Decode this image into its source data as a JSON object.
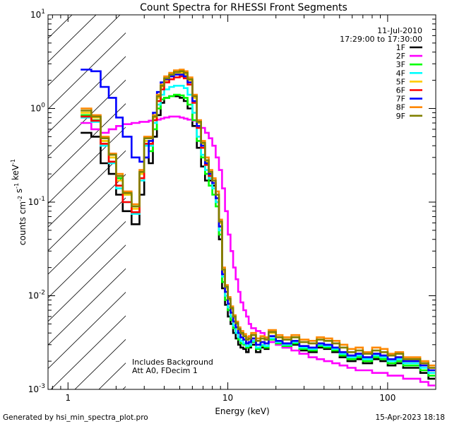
{
  "chart_data": {
    "type": "line",
    "title": "Count Spectra for RHESSI Front Segments",
    "xlabel": "Energy (keV)",
    "ylabel": "counts cm^-2 s^-1 keV^-1",
    "xscale": "log",
    "yscale": "log",
    "xlim": [
      0.75,
      200
    ],
    "ylim": [
      0.001,
      10
    ],
    "x_tick_labels": [
      "1",
      "10",
      "100"
    ],
    "y_tick_labels": [
      "10^-3",
      "10^-2",
      "10^-1",
      "10^0",
      "10^1"
    ],
    "date": "11-Jul-2010",
    "time_range": "17:29:00 to 17:30:00",
    "hatched_region_keV": [
      0.75,
      3.0
    ],
    "annotation_lines": [
      "Includes Background",
      "Att A0, FDecim 1"
    ],
    "energy_keV": [
      1.2,
      1.4,
      1.6,
      1.8,
      2.0,
      2.2,
      2.5,
      2.8,
      3.0,
      3.2,
      3.4,
      3.6,
      3.8,
      4.0,
      4.3,
      4.6,
      5.0,
      5.3,
      5.6,
      6.0,
      6.4,
      6.8,
      7.2,
      7.6,
      8.0,
      8.4,
      8.8,
      9.2,
      9.6,
      10.0,
      10.4,
      10.8,
      11.2,
      11.6,
      12.0,
      12.5,
      13.0,
      13.5,
      14.0,
      15.0,
      16.0,
      17.0,
      18.0,
      20.0,
      22.0,
      25.0,
      28.0,
      32.0,
      36.0,
      40.0,
      45.0,
      50.0,
      56.0,
      63.0,
      70.0,
      80.0,
      90.0,
      100.0,
      112.0,
      125.0,
      140.0,
      160.0,
      180.0
    ],
    "series": [
      {
        "name": "1F",
        "color": "#000000",
        "values": [
          0.55,
          0.5,
          0.26,
          0.2,
          0.12,
          0.08,
          0.058,
          0.12,
          0.3,
          0.26,
          0.5,
          0.85,
          1.15,
          1.3,
          1.35,
          1.35,
          1.3,
          1.2,
          1.0,
          0.65,
          0.38,
          0.24,
          0.17,
          0.17,
          0.15,
          0.1,
          0.04,
          0.012,
          0.008,
          0.006,
          0.005,
          0.004,
          0.0035,
          0.003,
          0.0028,
          0.0027,
          0.0025,
          0.0028,
          0.003,
          0.0025,
          0.0028,
          0.0027,
          0.0035,
          0.003,
          0.0028,
          0.003,
          0.0026,
          0.0025,
          0.0028,
          0.0027,
          0.0025,
          0.0022,
          0.002,
          0.0021,
          0.0019,
          0.0021,
          0.002,
          0.0018,
          0.0019,
          0.0017,
          0.0017,
          0.0015,
          0.0013
        ]
      },
      {
        "name": "2F",
        "color": "#ff00ff",
        "values": [
          0.7,
          0.6,
          0.55,
          0.6,
          0.65,
          0.68,
          0.7,
          0.72,
          0.72,
          0.74,
          0.75,
          0.76,
          0.78,
          0.8,
          0.82,
          0.82,
          0.8,
          0.78,
          0.76,
          0.74,
          0.7,
          0.62,
          0.55,
          0.48,
          0.4,
          0.3,
          0.22,
          0.14,
          0.08,
          0.045,
          0.03,
          0.02,
          0.015,
          0.011,
          0.0085,
          0.007,
          0.006,
          0.005,
          0.0045,
          0.0042,
          0.004,
          0.0035,
          0.0032,
          0.003,
          0.0028,
          0.0026,
          0.0024,
          0.0022,
          0.0021,
          0.002,
          0.0019,
          0.0018,
          0.0017,
          0.0016,
          0.0016,
          0.0015,
          0.0015,
          0.0014,
          0.0014,
          0.0013,
          0.0013,
          0.0012,
          0.0011
        ]
      },
      {
        "name": "3F",
        "color": "#00ff00",
        "values": [
          0.85,
          0.75,
          0.45,
          0.3,
          0.18,
          0.12,
          0.09,
          0.2,
          0.45,
          0.35,
          0.6,
          1.0,
          1.25,
          1.3,
          1.35,
          1.4,
          1.38,
          1.3,
          1.1,
          0.75,
          0.45,
          0.3,
          0.2,
          0.15,
          0.12,
          0.09,
          0.045,
          0.014,
          0.009,
          0.007,
          0.0055,
          0.0045,
          0.004,
          0.0034,
          0.0031,
          0.003,
          0.0028,
          0.0029,
          0.0032,
          0.0027,
          0.0029,
          0.0028,
          0.0034,
          0.0031,
          0.0029,
          0.0031,
          0.0027,
          0.0026,
          0.0029,
          0.0028,
          0.0026,
          0.0023,
          0.0021,
          0.0022,
          0.002,
          0.0022,
          0.0021,
          0.0019,
          0.002,
          0.0018,
          0.0018,
          0.0016,
          0.0014
        ]
      },
      {
        "name": "4F",
        "color": "#00ffff",
        "values": [
          0.8,
          0.72,
          0.4,
          0.26,
          0.14,
          0.1,
          0.075,
          0.17,
          0.4,
          0.4,
          0.7,
          1.1,
          1.4,
          1.6,
          1.7,
          1.75,
          1.75,
          1.65,
          1.4,
          0.9,
          0.5,
          0.32,
          0.22,
          0.18,
          0.14,
          0.1,
          0.05,
          0.016,
          0.01,
          0.0075,
          0.006,
          0.0048,
          0.004,
          0.0036,
          0.0033,
          0.0031,
          0.0029,
          0.003,
          0.0033,
          0.0028,
          0.003,
          0.0029,
          0.0035,
          0.0032,
          0.003,
          0.0032,
          0.0028,
          0.0027,
          0.003,
          0.0029,
          0.0027,
          0.0024,
          0.0022,
          0.0023,
          0.0021,
          0.0023,
          0.0022,
          0.002,
          0.0021,
          0.0019,
          0.0019,
          0.0017,
          0.0015
        ]
      },
      {
        "name": "5F",
        "color": "#ffcc00",
        "values": [
          0.9,
          0.8,
          0.45,
          0.3,
          0.17,
          0.12,
          0.085,
          0.2,
          0.45,
          0.45,
          0.8,
          1.3,
          1.7,
          2.0,
          2.2,
          2.35,
          2.4,
          2.3,
          2.0,
          1.3,
          0.7,
          0.42,
          0.27,
          0.2,
          0.17,
          0.12,
          0.06,
          0.018,
          0.012,
          0.009,
          0.0072,
          0.0058,
          0.005,
          0.0043,
          0.0039,
          0.0037,
          0.0034,
          0.0035,
          0.0038,
          0.0033,
          0.0035,
          0.0034,
          0.004,
          0.0036,
          0.0034,
          0.0036,
          0.0032,
          0.0031,
          0.0034,
          0.0033,
          0.0031,
          0.0028,
          0.0025,
          0.0026,
          0.0024,
          0.0026,
          0.0025,
          0.0023,
          0.0024,
          0.0021,
          0.0021,
          0.0019,
          0.0017
        ]
      },
      {
        "name": "6F",
        "color": "#ff0000",
        "values": [
          0.82,
          0.74,
          0.42,
          0.27,
          0.15,
          0.1,
          0.078,
          0.18,
          0.42,
          0.42,
          0.75,
          1.2,
          1.6,
          1.9,
          2.05,
          2.15,
          2.2,
          2.1,
          1.8,
          1.15,
          0.62,
          0.38,
          0.25,
          0.19,
          0.16,
          0.11,
          0.055,
          0.017,
          0.011,
          0.0082,
          0.0066,
          0.0053,
          0.0046,
          0.004,
          0.0036,
          0.0034,
          0.0031,
          0.0032,
          0.0035,
          0.003,
          0.0032,
          0.0031,
          0.0037,
          0.0033,
          0.0031,
          0.0033,
          0.0029,
          0.0028,
          0.0031,
          0.003,
          0.0028,
          0.0025,
          0.0023,
          0.0024,
          0.0022,
          0.0024,
          0.0023,
          0.0021,
          0.0022,
          0.002,
          0.002,
          0.0018,
          0.0016
        ]
      },
      {
        "name": "7F",
        "color": "#0000ff",
        "values": [
          2.6,
          2.5,
          1.7,
          1.3,
          0.8,
          0.5,
          0.3,
          0.27,
          0.3,
          0.45,
          0.9,
          1.5,
          1.9,
          2.05,
          2.2,
          2.3,
          2.3,
          2.2,
          1.9,
          1.2,
          0.65,
          0.4,
          0.26,
          0.2,
          0.16,
          0.11,
          0.055,
          0.017,
          0.011,
          0.0082,
          0.0066,
          0.0053,
          0.0046,
          0.004,
          0.0036,
          0.0034,
          0.0031,
          0.0032,
          0.0035,
          0.003,
          0.0032,
          0.0031,
          0.0037,
          0.0033,
          0.0031,
          0.0033,
          0.0029,
          0.0028,
          0.0031,
          0.003,
          0.0028,
          0.0025,
          0.0023,
          0.0024,
          0.0022,
          0.0024,
          0.0023,
          0.0021,
          0.0022,
          0.002,
          0.002,
          0.0018,
          0.0016
        ]
      },
      {
        "name": "8F",
        "color": "#ff8800",
        "values": [
          1.0,
          0.85,
          0.5,
          0.33,
          0.2,
          0.13,
          0.095,
          0.22,
          0.5,
          0.5,
          0.85,
          1.4,
          1.8,
          2.2,
          2.4,
          2.55,
          2.6,
          2.5,
          2.15,
          1.4,
          0.75,
          0.45,
          0.3,
          0.22,
          0.18,
          0.13,
          0.065,
          0.02,
          0.013,
          0.0097,
          0.0077,
          0.0062,
          0.0053,
          0.0046,
          0.0042,
          0.0039,
          0.0036,
          0.0037,
          0.004,
          0.0035,
          0.0037,
          0.0036,
          0.0043,
          0.0038,
          0.0036,
          0.0038,
          0.0034,
          0.0033,
          0.0036,
          0.0035,
          0.0033,
          0.003,
          0.0027,
          0.0028,
          0.0025,
          0.0028,
          0.0027,
          0.0024,
          0.0025,
          0.0022,
          0.0022,
          0.002,
          0.0018
        ]
      },
      {
        "name": "9F",
        "color": "#808000",
        "values": [
          0.95,
          0.82,
          0.48,
          0.32,
          0.19,
          0.125,
          0.09,
          0.21,
          0.48,
          0.48,
          0.82,
          1.35,
          1.75,
          2.1,
          2.3,
          2.45,
          2.5,
          2.4,
          2.05,
          1.35,
          0.72,
          0.43,
          0.28,
          0.21,
          0.17,
          0.12,
          0.062,
          0.019,
          0.0125,
          0.0093,
          0.0074,
          0.006,
          0.0051,
          0.0044,
          0.004,
          0.0037,
          0.0034,
          0.0035,
          0.0038,
          0.0033,
          0.0035,
          0.0034,
          0.0041,
          0.0036,
          0.0034,
          0.0036,
          0.0032,
          0.0031,
          0.0034,
          0.0033,
          0.0031,
          0.0028,
          0.0025,
          0.0026,
          0.0024,
          0.0026,
          0.0025,
          0.0023,
          0.0024,
          0.0021,
          0.0021,
          0.0019,
          0.0017
        ]
      }
    ]
  },
  "footer": {
    "left": "Generated by hsi_min_spectra_plot.pro",
    "right": "15-Apr-2023 18:18"
  }
}
